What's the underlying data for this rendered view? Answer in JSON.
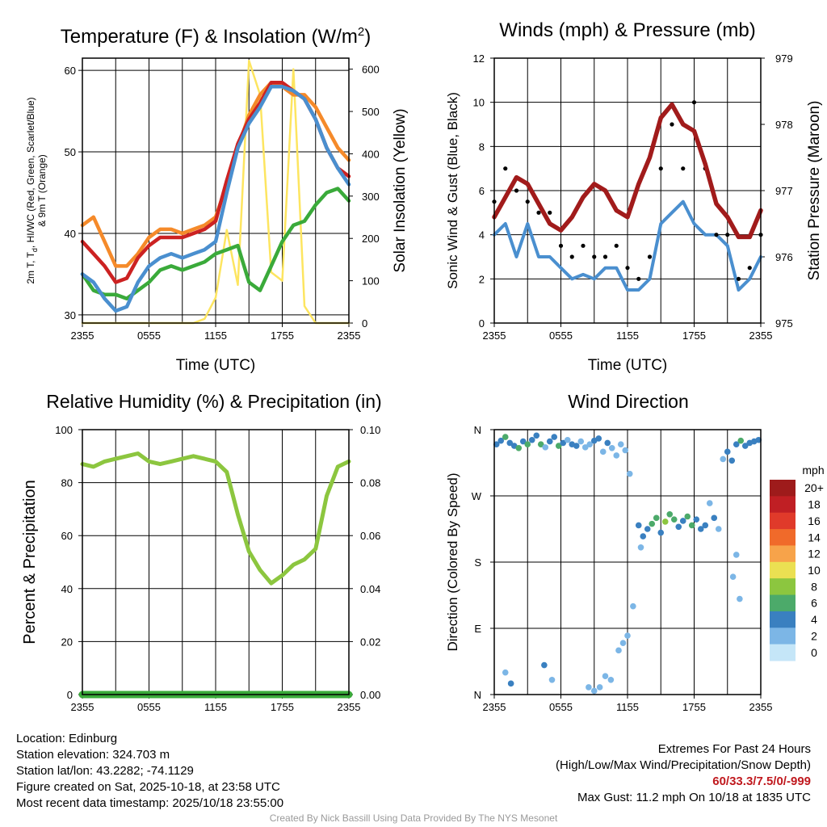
{
  "x_ticks": [
    "2355",
    "0555",
    "1155",
    "1755",
    "2355"
  ],
  "panels": {
    "temperature": {
      "title_prefix": "Temperature (F) & Insolation (W/m",
      "title_sup": "2",
      "title_suffix": ")",
      "ylabel_left_line1": "2m T, T",
      "ylabel_left_sub": "d",
      "ylabel_left_rest": ", HI/WC (Red, Green, Scarlet/Blue)",
      "ylabel_left_line2": "& 9m T (Orange)",
      "ylabel_right": "Solar Insolation (Yellow)",
      "xlabel": "Time (UTC)",
      "left_ticks": [
        "30",
        "40",
        "50",
        "60"
      ],
      "right_ticks": [
        "0",
        "100",
        "200",
        "300",
        "400",
        "500",
        "600"
      ]
    },
    "winds": {
      "title": "Winds (mph) & Pressure (mb)",
      "ylabel_left": "Sonic Wind & Gust (Blue, Black)",
      "ylabel_right": "Station Pressure (Maroon)",
      "xlabel": "Time (UTC)",
      "left_ticks": [
        "0",
        "2",
        "4",
        "6",
        "8",
        "10",
        "12"
      ],
      "right_ticks": [
        "975",
        "976",
        "977",
        "978",
        "979"
      ]
    },
    "humidity": {
      "title": "Relative Humidity (%) & Precipitation (in)",
      "ylabel_left": "Percent & Precipitation",
      "left_ticks": [
        "0",
        "20",
        "40",
        "60",
        "80",
        "100"
      ],
      "right_ticks": [
        "0.00",
        "0.02",
        "0.04",
        "0.06",
        "0.08",
        "0.10"
      ]
    },
    "direction": {
      "title": "Wind Direction",
      "ylabel_left": "Direction (Colored By Speed)",
      "dir_ticks": [
        "N",
        "E",
        "S",
        "W",
        "N"
      ],
      "legend_title": "mph",
      "legend_labels": [
        "20+",
        "18",
        "16",
        "14",
        "12",
        "10",
        "8",
        "6",
        "4",
        "2",
        "0"
      ]
    }
  },
  "colors": {
    "temp_red": "#cc2222",
    "dewpoint_green": "#3aaa3a",
    "wind_chill_blue": "#4a8fcf",
    "temp9m_orange": "#f58a2a",
    "insolation_yellow": "#fde560",
    "wind_blue": "#4a8fcf",
    "gust_black": "#000000",
    "pressure_maroon": "#a11b1b",
    "rh_green": "#8cc63f",
    "precip_green": "#3aaa3a",
    "legend_scale": [
      "#9e1b1b",
      "#c01f24",
      "#e03a2a",
      "#f06a2a",
      "#f7a34a",
      "#ebe052",
      "#8cc63f",
      "#4caa6a",
      "#3a80c0",
      "#7cb6e6",
      "#c5e6f8"
    ]
  },
  "chart_data": [
    {
      "type": "line",
      "title": "Temperature (F) & Insolation (W/m2)",
      "xlabel": "Time (UTC)",
      "x_hours": [
        0,
        1,
        2,
        3,
        4,
        5,
        6,
        7,
        8,
        9,
        10,
        11,
        12,
        13,
        14,
        15,
        16,
        17,
        18,
        19,
        20,
        21,
        22,
        23,
        24
      ],
      "ylim_left": [
        29,
        61.5
      ],
      "ylim_right": [
        0,
        626
      ],
      "series": [
        {
          "name": "2m T",
          "color": "temp_red",
          "axis": "left",
          "values": [
            39,
            37.5,
            36,
            34,
            34.5,
            37,
            38.5,
            39.5,
            39.5,
            39.5,
            40,
            40.5,
            41.5,
            46.5,
            51,
            54,
            56,
            58.5,
            58.5,
            57.5,
            56.5,
            54,
            50.5,
            48,
            47
          ]
        },
        {
          "name": "9m T",
          "color": "temp9m_orange",
          "axis": "left",
          "values": [
            41,
            42,
            39,
            36,
            36,
            37.5,
            39.5,
            40.5,
            40.5,
            40,
            40.5,
            41,
            42,
            46,
            50.5,
            54.5,
            57,
            58.5,
            58,
            57,
            57,
            55.5,
            53,
            50.5,
            49
          ]
        },
        {
          "name": "Dewpoint",
          "color": "dewpoint_green",
          "axis": "left",
          "values": [
            35,
            33,
            32.5,
            32.5,
            32,
            33,
            34,
            35.5,
            36,
            35.5,
            36,
            36.5,
            37.5,
            38,
            38.5,
            34,
            33,
            36,
            39,
            41,
            41.5,
            43.5,
            45,
            45.5,
            44
          ]
        },
        {
          "name": "HI/WC",
          "color": "wind_chill_blue",
          "axis": "left",
          "values": [
            35,
            34,
            32,
            30.5,
            31,
            34,
            36,
            37,
            37.5,
            37,
            37.5,
            38,
            39,
            45,
            50.5,
            53.5,
            55.5,
            58,
            58,
            57.5,
            56.5,
            54,
            50.5,
            48,
            46
          ]
        },
        {
          "name": "Solar Insolation",
          "color": "insolation_yellow",
          "axis": "right",
          "values": [
            0,
            0,
            0,
            0,
            0,
            0,
            0,
            0,
            0,
            0,
            0,
            10,
            60,
            220,
            90,
            620,
            540,
            120,
            100,
            600,
            40,
            0,
            0,
            0,
            0
          ]
        }
      ]
    },
    {
      "type": "line",
      "title": "Winds (mph) & Pressure (mb)",
      "xlabel": "Time (UTC)",
      "x_hours": [
        0,
        1,
        2,
        3,
        4,
        5,
        6,
        7,
        8,
        9,
        10,
        11,
        12,
        13,
        14,
        15,
        16,
        17,
        18,
        19,
        20,
        21,
        22,
        23,
        24
      ],
      "ylim_left": [
        0,
        12
      ],
      "ylim_right": [
        975,
        979
      ],
      "series": [
        {
          "name": "Sonic Wind",
          "color": "wind_blue",
          "axis": "left",
          "values": [
            4,
            4.5,
            3,
            4.5,
            3,
            3,
            2.5,
            2,
            2.2,
            2,
            2.5,
            2.5,
            1.5,
            1.5,
            2,
            4.5,
            5,
            5.5,
            4.5,
            4,
            4,
            3.5,
            1.5,
            2,
            3
          ]
        },
        {
          "name": "Gust",
          "color": "gust_black",
          "axis": "left",
          "values": [
            5.5,
            7,
            6,
            5.5,
            5,
            5,
            3.5,
            3,
            3.5,
            3,
            3,
            3.5,
            2.5,
            2,
            3,
            7,
            9,
            7,
            10,
            7,
            4,
            4,
            2,
            2.5,
            4
          ]
        },
        {
          "name": "Station Pressure",
          "color": "pressure_maroon",
          "axis": "right",
          "values": [
            976.6,
            976.9,
            977.2,
            977.1,
            976.8,
            976.5,
            976.4,
            976.6,
            976.9,
            977.1,
            977,
            976.7,
            976.6,
            977.1,
            977.5,
            978.1,
            978.3,
            978,
            977.9,
            977.4,
            976.8,
            976.6,
            976.3,
            976.3,
            976.7
          ]
        }
      ]
    },
    {
      "type": "line",
      "title": "Relative Humidity (%) & Precipitation (in)",
      "xlabel": "",
      "x_hours": [
        0,
        1,
        2,
        3,
        4,
        5,
        6,
        7,
        8,
        9,
        10,
        11,
        12,
        13,
        14,
        15,
        16,
        17,
        18,
        19,
        20,
        21,
        22,
        23,
        24
      ],
      "ylim_left": [
        0,
        100
      ],
      "ylim_right": [
        0,
        0.1
      ],
      "series": [
        {
          "name": "Relative Humidity",
          "color": "rh_green",
          "axis": "left",
          "values": [
            87,
            86,
            88,
            89,
            90,
            91,
            88,
            87,
            88,
            89,
            90,
            89,
            88,
            84,
            68,
            54,
            47,
            42,
            45,
            49,
            51,
            55,
            75,
            86,
            88
          ]
        },
        {
          "name": "Precipitation",
          "color": "precip_green",
          "axis": "right",
          "values": [
            0,
            0,
            0,
            0,
            0,
            0,
            0,
            0,
            0,
            0,
            0,
            0,
            0,
            0,
            0,
            0,
            0,
            0,
            0,
            0,
            0,
            0,
            0,
            0,
            0
          ]
        }
      ]
    },
    {
      "type": "scatter",
      "title": "Wind Direction",
      "ylabel": "Direction (Colored By Speed)",
      "y_categories": [
        "N",
        "E",
        "S",
        "W",
        "N"
      ],
      "ylim": [
        0,
        360
      ],
      "points_hours": [
        0.2,
        0.6,
        1.0,
        1.4,
        1.8,
        2.2,
        2.6,
        3.0,
        3.4,
        3.8,
        4.2,
        4.6,
        5.0,
        5.4,
        5.8,
        6.2,
        6.6,
        7.0,
        7.4,
        7.8,
        8.2,
        8.6,
        9.0,
        9.4,
        9.8,
        10.2,
        10.6,
        11.0,
        11.4,
        11.8,
        12.2,
        13.0,
        13.4,
        13.8,
        14.2,
        14.6,
        15.0,
        15.4,
        15.8,
        16.2,
        16.6,
        17.0,
        17.4,
        17.8,
        18.2,
        18.6,
        19.0,
        19.4,
        19.8,
        20.2,
        20.6,
        21.0,
        21.4,
        21.8,
        22.2,
        22.6,
        23.0,
        23.4,
        23.8,
        1.0,
        1.5,
        4.5,
        5.2,
        8.5,
        9.0,
        9.5,
        10.0,
        10.5,
        11.2,
        11.6,
        12.0,
        12.5,
        13.2,
        21.5,
        21.8,
        22.1
      ],
      "points_directions": [
        340,
        345,
        350,
        342,
        338,
        335,
        344,
        340,
        346,
        352,
        340,
        336,
        344,
        350,
        338,
        342,
        346,
        340,
        338,
        344,
        336,
        340,
        345,
        348,
        330,
        342,
        335,
        325,
        340,
        332,
        300,
        230,
        215,
        225,
        232,
        240,
        220,
        235,
        245,
        238,
        228,
        236,
        242,
        230,
        238,
        225,
        230,
        260,
        240,
        225,
        320,
        330,
        318,
        340,
        345,
        338,
        342,
        344,
        346,
        30,
        15,
        40,
        20,
        10,
        5,
        10,
        25,
        20,
        60,
        70,
        80,
        120,
        200,
        160,
        190,
        130
      ],
      "points_speeds": [
        4,
        3,
        6,
        4,
        3,
        5,
        4,
        6,
        3,
        4,
        5,
        2,
        3,
        4,
        5,
        3,
        2,
        4,
        3,
        2,
        1,
        2,
        3,
        4,
        2,
        3,
        2,
        1,
        2,
        1,
        1,
        4,
        3,
        4,
        5,
        6,
        4,
        7,
        5,
        6,
        4,
        3,
        5,
        6,
        4,
        3,
        4,
        2,
        3,
        2,
        2,
        3,
        4,
        3,
        5,
        4,
        4,
        3,
        4,
        2,
        3,
        4,
        2,
        1,
        2,
        2,
        1,
        2,
        1,
        1,
        2,
        1,
        2,
        1,
        1,
        1
      ]
    }
  ],
  "footer": {
    "location": "Location: Edinburg",
    "elevation": "Station elevation: 324.703 m",
    "latlon": "Station lat/lon: 43.2282; -74.1129",
    "created": "Figure created on Sat, 2025-10-18, at 23:58 UTC",
    "recent": "Most recent data timestamp: 2025/10/18 23:55:00",
    "extremes_title": "Extremes For Past 24 Hours",
    "extremes_subtitle": "(High/Low/Max Wind/Precipitation/Snow Depth)",
    "extremes_values": "60/33.3/7.5/0/-999",
    "max_gust": "Max Gust: 11.2 mph On 10/18 at 1835 UTC",
    "credit": "Created By Nick Bassill Using Data Provided By The NYS Mesonet"
  }
}
